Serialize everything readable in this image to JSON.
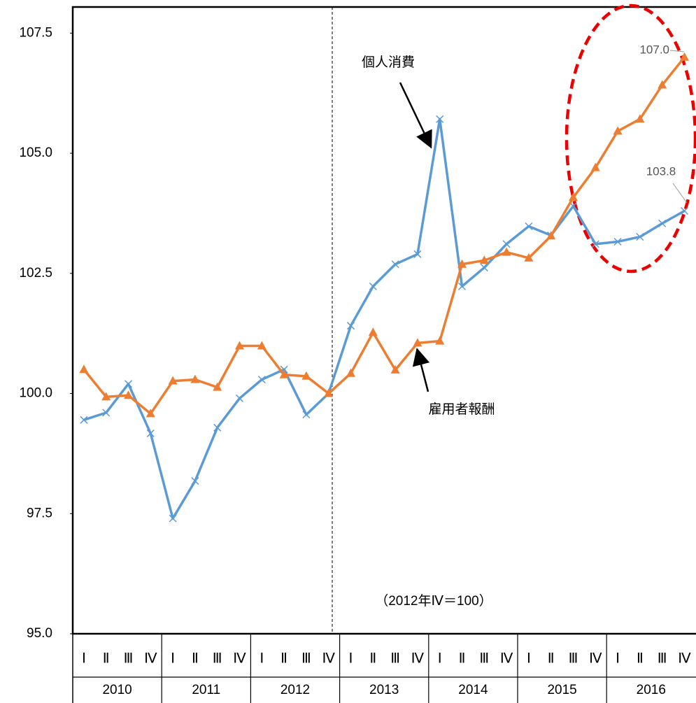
{
  "chart_data": {
    "type": "line",
    "annotations": [
      "個人消費",
      "雇用者報酬",
      "（2012年Ⅳ＝100）"
    ],
    "categories": [
      "Ⅰ",
      "Ⅱ",
      "Ⅲ",
      "Ⅳ",
      "Ⅰ",
      "Ⅱ",
      "Ⅲ",
      "Ⅳ",
      "Ⅰ",
      "Ⅱ",
      "Ⅲ",
      "Ⅳ",
      "Ⅰ",
      "Ⅱ",
      "Ⅲ",
      "Ⅳ",
      "Ⅰ",
      "Ⅱ",
      "Ⅲ",
      "Ⅳ",
      "Ⅰ",
      "Ⅱ",
      "Ⅲ",
      "Ⅳ",
      "Ⅰ",
      "Ⅱ",
      "Ⅲ",
      "Ⅳ"
    ],
    "years": [
      "2010",
      "2011",
      "2012",
      "2013",
      "2014",
      "2015",
      "2016"
    ],
    "series": [
      {
        "name": "個人消費",
        "color": "#5b9bd5",
        "marker": "x",
        "values": [
          99.45,
          99.6,
          100.2,
          99.17,
          97.4,
          98.18,
          99.29,
          99.9,
          100.29,
          100.5,
          99.56,
          100.0,
          101.41,
          102.23,
          102.69,
          102.9,
          105.71,
          102.23,
          102.62,
          103.11,
          103.48,
          103.29,
          103.9,
          103.11,
          103.16,
          103.26,
          103.54,
          103.8
        ]
      },
      {
        "name": "雇用者報酬",
        "color": "#ed7d31",
        "marker": "triangle",
        "values": [
          100.5,
          99.93,
          99.96,
          99.58,
          100.26,
          100.29,
          100.13,
          100.99,
          100.99,
          100.39,
          100.36,
          100.0,
          100.42,
          101.27,
          100.49,
          101.05,
          101.09,
          102.69,
          102.77,
          102.94,
          102.82,
          103.28,
          104.08,
          104.7,
          105.46,
          105.71,
          106.42,
          107.0
        ],
        "value_labels": [
          null,
          null,
          null,
          null,
          null,
          null,
          null,
          null,
          null,
          null,
          null,
          null,
          null,
          null,
          null,
          null,
          null,
          null,
          null,
          null,
          null,
          null,
          null,
          null,
          null,
          null,
          null,
          "107.0"
        ]
      }
    ],
    "ylim": [
      95,
      108
    ],
    "yticks": [
      {
        "value": 95,
        "label": "95.0"
      },
      97.5,
      {
        "value": 100,
        "label": "100.0"
      },
      102.5,
      {
        "value": 105,
        "label": "105.0"
      },
      107.5
    ],
    "grid": false
  }
}
